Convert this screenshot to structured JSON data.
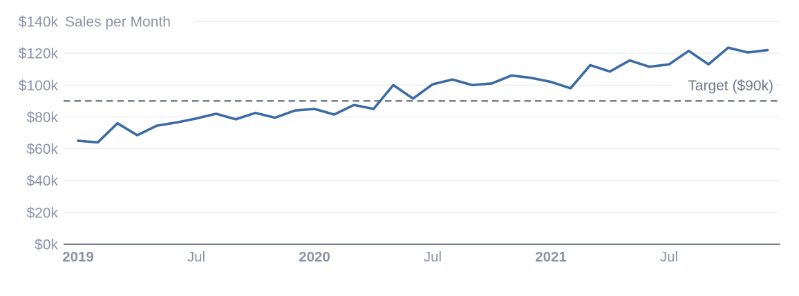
{
  "colors": {
    "background": "#ffffff",
    "series_line": "#3a6ba4",
    "gridline": "#e4e6eb",
    "axis_line": "#737b8a",
    "tick_text": "#8a94a5",
    "target_line": "#6d7687",
    "target_text": "#6f7889"
  },
  "chart_data": {
    "type": "line",
    "title": "Sales per Month",
    "xlabel": "",
    "ylabel": "",
    "ylim": [
      0,
      140
    ],
    "grid": true,
    "legend": false,
    "unit": "$k (USD thousands)",
    "x": [
      "Jan 2019",
      "Feb 2019",
      "Mar 2019",
      "Apr 2019",
      "May 2019",
      "Jun 2019",
      "Jul 2019",
      "Aug 2019",
      "Sep 2019",
      "Oct 2019",
      "Nov 2019",
      "Dec 2019",
      "Jan 2020",
      "Feb 2020",
      "Mar 2020",
      "Apr 2020",
      "May 2020",
      "Jun 2020",
      "Jul 2020",
      "Aug 2020",
      "Sep 2020",
      "Oct 2020",
      "Nov 2020",
      "Dec 2020",
      "Jan 2021",
      "Feb 2021",
      "Mar 2021",
      "Apr 2021",
      "May 2021",
      "Jun 2021",
      "Jul 2021",
      "Aug 2021",
      "Sep 2021",
      "Oct 2021",
      "Nov 2021",
      "Dec 2021"
    ],
    "series": [
      {
        "name": "Sales",
        "values": [
          65,
          64,
          76,
          68.5,
          74.5,
          76.5,
          79,
          82,
          78.5,
          82.5,
          79.5,
          84,
          85,
          81.5,
          87.5,
          85,
          100,
          91.5,
          100.5,
          103.5,
          100,
          101,
          106,
          104.5,
          102,
          98,
          112.5,
          108.5,
          115.5,
          111.5,
          113,
          121.5,
          113,
          123.5,
          120.5,
          122
        ]
      }
    ],
    "target": {
      "label": "Target ($90k)",
      "value": 90
    },
    "y_axis": {
      "ticks": [
        {
          "label": "$0k",
          "value": 0
        },
        {
          "label": "$20k",
          "value": 20
        },
        {
          "label": "$40k",
          "value": 40
        },
        {
          "label": "$60k",
          "value": 60
        },
        {
          "label": "$80k",
          "value": 80
        },
        {
          "label": "$100k",
          "value": 100
        },
        {
          "label": "$120k",
          "value": 120
        },
        {
          "label": "$140k",
          "value": 140
        }
      ]
    },
    "x_axis": {
      "ticks": [
        {
          "label": "2019",
          "month_index": 0,
          "style": "bold"
        },
        {
          "label": "Jul",
          "month_index": 6,
          "style": "normal"
        },
        {
          "label": "2020",
          "month_index": 12,
          "style": "bold"
        },
        {
          "label": "Jul",
          "month_index": 18,
          "style": "normal"
        },
        {
          "label": "2021",
          "month_index": 24,
          "style": "bold"
        },
        {
          "label": "Jul",
          "month_index": 30,
          "style": "normal"
        }
      ]
    }
  }
}
